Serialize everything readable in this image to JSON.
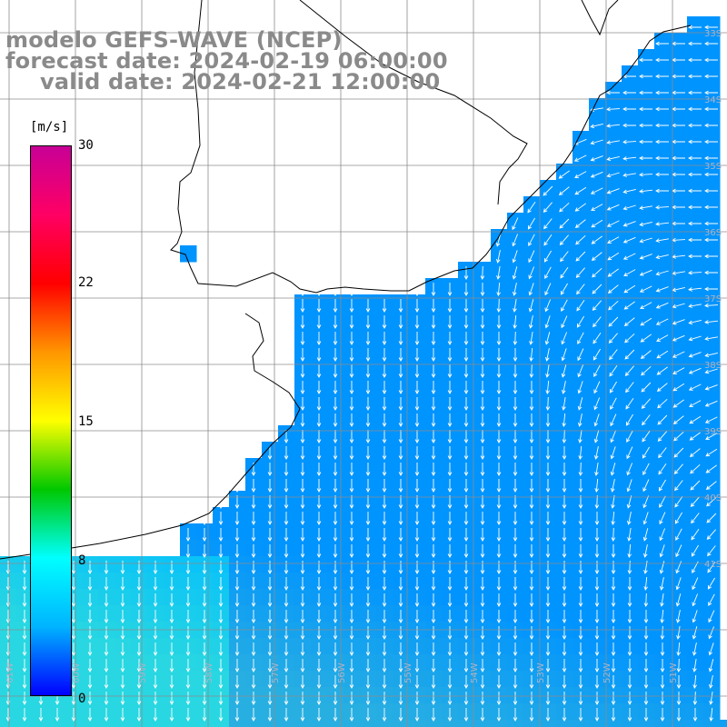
{
  "title": {
    "model": "modelo GEFS-WAVE (NCEP)",
    "forecast": "forecast date: 2024-02-19 06:00:00",
    "valid": "valid date: 2024-02-21 12:00:00"
  },
  "colorbar": {
    "unit": "[m/s]",
    "ticks": [
      "30",
      "22",
      "15",
      "8",
      "0"
    ],
    "tick_values": [
      30,
      22,
      15,
      8,
      0
    ],
    "range": [
      0,
      30
    ],
    "colors": [
      "#0000ff",
      "#00b4ff",
      "#00ffff",
      "#00c800",
      "#ffff00",
      "#ff9600",
      "#ff0000",
      "#ff0064",
      "#c80096"
    ]
  },
  "map": {
    "variable": "wind speed and direction",
    "region": "South Atlantic off southern Brazil, Uruguay and Argentina",
    "land_color": "#ffffff",
    "coast_color": "#000000",
    "grid_color": "#8c8c8c",
    "arrow_color": "#ffffff",
    "lon_labels": [
      "61W",
      "60W",
      "59W",
      "58W",
      "57W",
      "56W",
      "55W",
      "54W",
      "53W",
      "52W",
      "51W"
    ],
    "lat_labels": [
      "33S",
      "34S",
      "35S",
      "36S",
      "37S",
      "38S",
      "39S",
      "40S",
      "41S"
    ]
  }
}
